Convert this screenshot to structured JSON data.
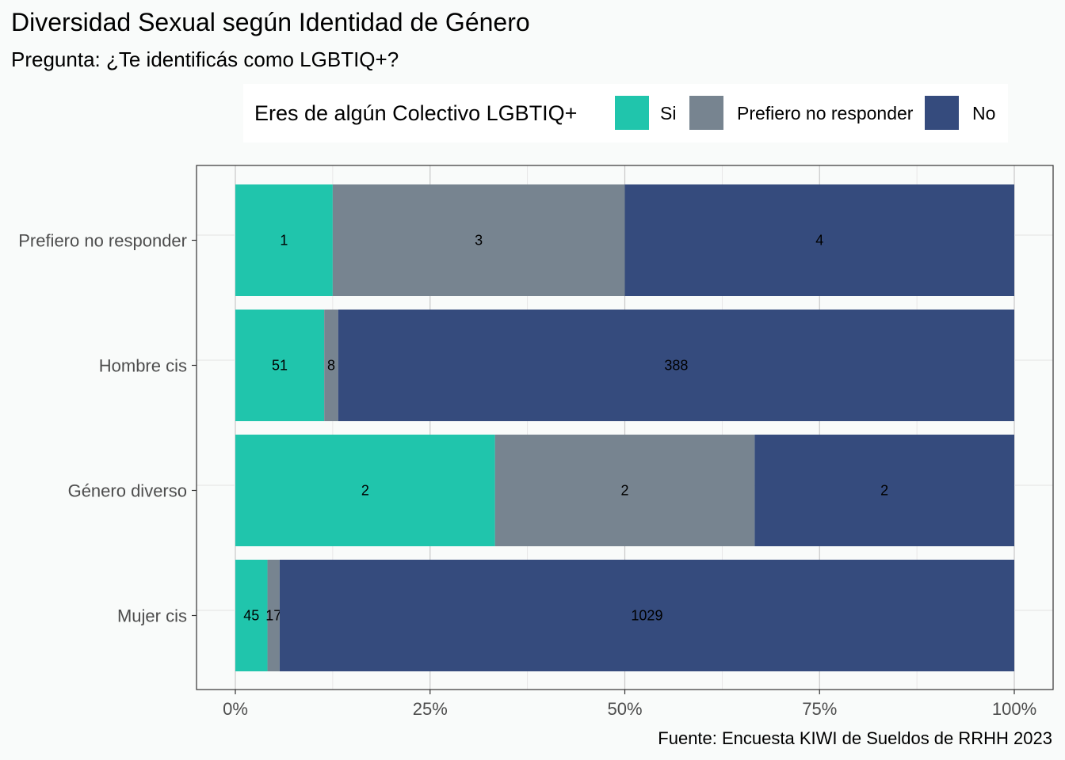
{
  "chart_data": {
    "type": "bar",
    "orientation": "horizontal",
    "stacked": true,
    "normalized": true,
    "title": "Diversidad Sexual según Identidad de Género",
    "subtitle": "Pregunta: ¿Te identificás como LGBTIQ+?",
    "caption": "Fuente: Encuesta KIWI de Sueldos de RRHH 2023",
    "legend_title": "Eres de algún Colectivo LGBTIQ+",
    "legend_position": "top-right",
    "categories": [
      "Prefiero no responder",
      "Hombre cis",
      "Género diverso",
      "Mujer cis"
    ],
    "series": [
      {
        "name": "Si",
        "color": "#20c5ac",
        "values": [
          1,
          51,
          2,
          45
        ]
      },
      {
        "name": "Prefiero no responder",
        "color": "#778490",
        "values": [
          3,
          8,
          2,
          17
        ]
      },
      {
        "name": "No",
        "color": "#354b7d",
        "values": [
          4,
          388,
          2,
          1029
        ]
      }
    ],
    "x_ticks": [
      "0%",
      "25%",
      "50%",
      "75%",
      "100%"
    ],
    "xlim": [
      0,
      1
    ],
    "grid": true
  }
}
